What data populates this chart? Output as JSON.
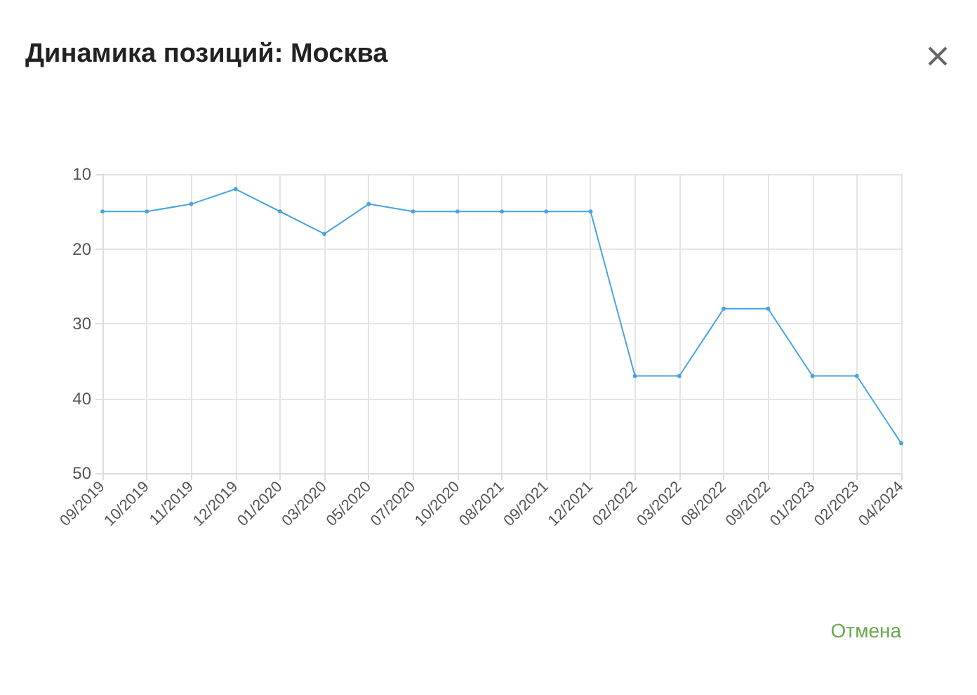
{
  "chart_data": {
    "type": "line",
    "title": "Динамика позиций: Москва",
    "categories": [
      "09/2019",
      "10/2019",
      "11/2019",
      "12/2019",
      "01/2020",
      "03/2020",
      "05/2020",
      "07/2020",
      "10/2020",
      "08/2021",
      "09/2021",
      "12/2021",
      "02/2022",
      "03/2022",
      "08/2022",
      "09/2022",
      "01/2023",
      "02/2023",
      "04/2024"
    ],
    "series": [
      {
        "color": "#4aa3df",
        "values": [
          15,
          15,
          14,
          12,
          15,
          18,
          14,
          15,
          15,
          15,
          15,
          15,
          37,
          37,
          28,
          28,
          37,
          37,
          46
        ]
      }
    ],
    "ylim": [
      50,
      10
    ],
    "yticks": [
      10,
      20,
      30,
      40,
      50
    ],
    "grid": true,
    "marker": "circle",
    "line_style": "solid",
    "annotations": [
      "Отмена"
    ]
  }
}
